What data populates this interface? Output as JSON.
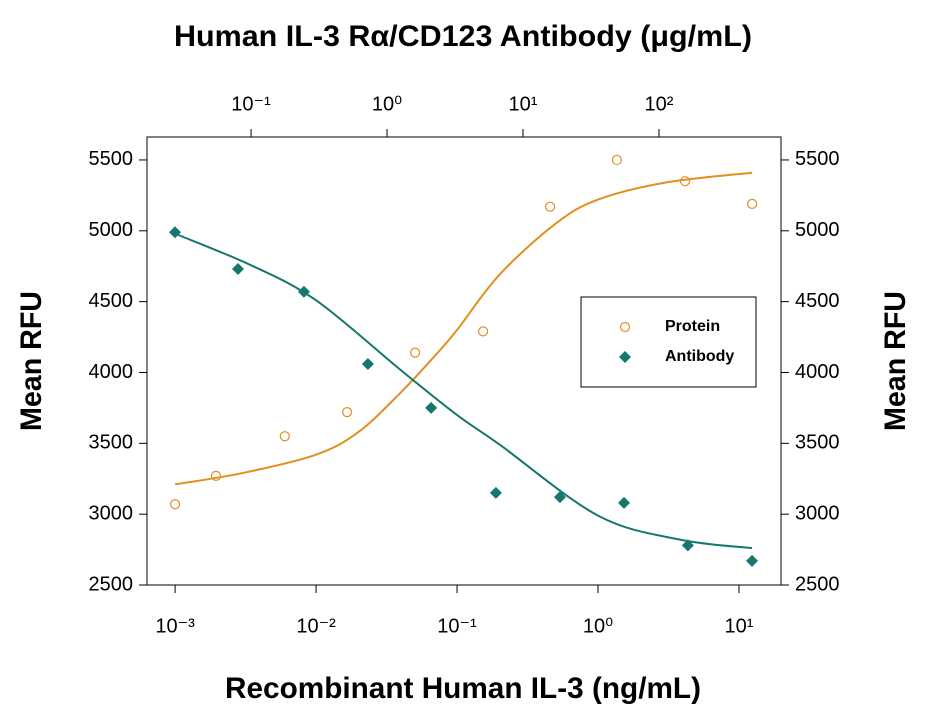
{
  "chart_data": {
    "type": "scatter",
    "title": "Human IL-3 Rα/CD123 Antibody (μg/mL)",
    "x_label": "Recombinant Human IL-3 (ng/mL)",
    "y_label": "Mean RFU",
    "y2_label": "Mean RFU",
    "log_x": true,
    "legend": "right",
    "xlim": [
      0.000632,
      19.86
    ],
    "xticks": [
      {
        "value": 0.001,
        "label": "10⁻³"
      },
      {
        "value": 0.01,
        "label": "10⁻²"
      },
      {
        "value": 0.1,
        "label": "10⁻¹"
      },
      {
        "value": 1,
        "label": "10⁰"
      },
      {
        "value": 10,
        "label": "10¹"
      }
    ],
    "x2lim": [
      0.01718,
      789
    ],
    "x2ticks": [
      {
        "value": 0.1,
        "label": "10⁻¹"
      },
      {
        "value": 1,
        "label": "10⁰"
      },
      {
        "value": 10,
        "label": "10¹"
      },
      {
        "value": 100,
        "label": "10²"
      }
    ],
    "ylim": [
      2500,
      5662
    ],
    "yticks": [
      2500,
      3000,
      3500,
      4000,
      4500,
      5000,
      5500
    ],
    "y2lim": [
      2500,
      5662
    ],
    "y2ticks": [
      2500,
      3000,
      3500,
      4000,
      4500,
      5000,
      5500
    ],
    "series": [
      {
        "name": "Protein",
        "color": "#e0901e",
        "marker": "circle",
        "x": [
          0.001,
          0.00195,
          0.006,
          0.0166,
          0.0504,
          0.153,
          0.457,
          1.36,
          4.14,
          12.4
        ],
        "values": [
          3070,
          3270,
          3550,
          3720,
          4140,
          4290,
          5170,
          5500,
          5350,
          5190
        ],
        "fit": {
          "x": [
            0.001,
            0.003,
            0.01,
            0.02,
            0.04,
            0.07,
            0.1,
            0.2,
            0.5,
            1,
            3,
            12.4
          ],
          "values": [
            3210,
            3290,
            3420,
            3580,
            3860,
            4120,
            4300,
            4690,
            5050,
            5220,
            5340,
            5410
          ]
        }
      },
      {
        "name": "Antibody",
        "color": "#16776c",
        "marker": "diamond",
        "xaxis": "x2",
        "x": [
          0.0276,
          0.0802,
          0.245,
          0.724,
          2.11,
          6.32,
          18.7,
          55.3,
          163,
          483
        ],
        "values": [
          4990,
          4730,
          4570,
          4060,
          3750,
          3150,
          3120,
          3080,
          2780,
          2670
        ],
        "fit": {
          "x": [
            0.0276,
            0.0983,
            0.3,
            1.25,
            3.27,
            6.75,
            35.6,
            143,
            483
          ],
          "values": [
            4980,
            4760,
            4510,
            4020,
            3700,
            3490,
            2990,
            2820,
            2760
          ]
        }
      }
    ]
  }
}
